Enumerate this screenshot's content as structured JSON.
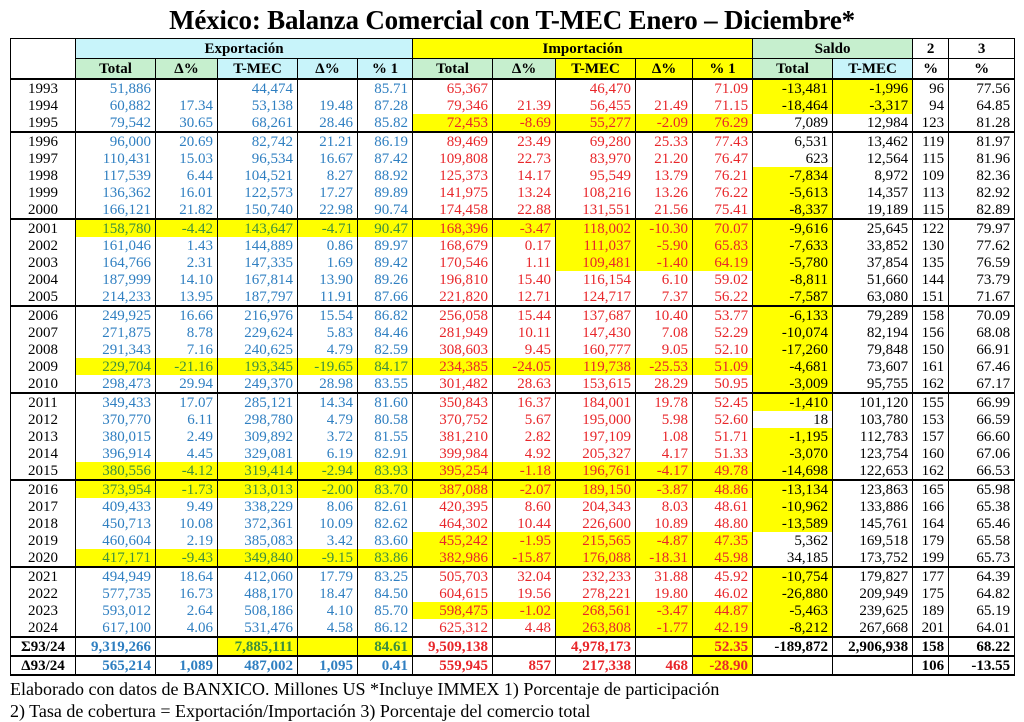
{
  "title": "México: Balanza Comercial con T-MEC Enero – Diciembre*",
  "groups": {
    "exportacion": "Exportación",
    "importacion": "Importación",
    "saldo": "Saldo",
    "col2": "2",
    "col3": "3"
  },
  "subheaders": [
    "Total",
    "Δ%",
    "T-MEC",
    "Δ%",
    "% 1",
    "Total",
    "Δ%",
    "T-MEC",
    "Δ%",
    "% 1",
    "Total",
    "T-MEC",
    "%",
    "%"
  ],
  "colors": {
    "export_text": "#2f7fc1",
    "import_text": "#e8262a",
    "highlight": "#ffff00",
    "header_cyan": "#c8f4fa",
    "header_green": "#c6efce"
  },
  "rows": [
    {
      "cells": [
        "1993",
        "51,886",
        "",
        "44,474",
        "",
        "85.71",
        "65,367",
        "",
        "46,470",
        "",
        "71.09",
        "-13,481",
        "-1,996",
        "96",
        "77.56"
      ],
      "highlight": [
        11,
        12
      ],
      "group_start": true
    },
    {
      "cells": [
        "1994",
        "60,882",
        "17.34",
        "53,138",
        "19.48",
        "87.28",
        "79,346",
        "21.39",
        "56,455",
        "21.49",
        "71.15",
        "-18,464",
        "-3,317",
        "94",
        "64.85"
      ],
      "highlight": [
        11,
        12
      ]
    },
    {
      "cells": [
        "1995",
        "79,542",
        "30.65",
        "68,261",
        "28.46",
        "85.82",
        "72,453",
        "-8.69",
        "55,277",
        "-2.09",
        "76.29",
        "7,089",
        "12,984",
        "123",
        "81.28"
      ],
      "highlight": [
        6,
        7,
        8,
        9,
        10
      ]
    },
    {
      "cells": [
        "1996",
        "96,000",
        "20.69",
        "82,742",
        "21.21",
        "86.19",
        "89,469",
        "23.49",
        "69,280",
        "25.33",
        "77.43",
        "6,531",
        "13,462",
        "119",
        "81.97"
      ],
      "highlight": [],
      "group_start": true
    },
    {
      "cells": [
        "1997",
        "110,431",
        "15.03",
        "96,534",
        "16.67",
        "87.42",
        "109,808",
        "22.73",
        "83,970",
        "21.20",
        "76.47",
        "623",
        "12,564",
        "115",
        "81.96"
      ],
      "highlight": []
    },
    {
      "cells": [
        "1998",
        "117,539",
        "6.44",
        "104,521",
        "8.27",
        "88.92",
        "125,373",
        "14.17",
        "95,549",
        "13.79",
        "76.21",
        "-7,834",
        "8,972",
        "109",
        "82.36"
      ],
      "highlight": [
        11
      ]
    },
    {
      "cells": [
        "1999",
        "136,362",
        "16.01",
        "122,573",
        "17.27",
        "89.89",
        "141,975",
        "13.24",
        "108,216",
        "13.26",
        "76.22",
        "-5,613",
        "14,357",
        "113",
        "82.92"
      ],
      "highlight": [
        11
      ]
    },
    {
      "cells": [
        "2000",
        "166,121",
        "21.82",
        "150,740",
        "22.98",
        "90.74",
        "174,458",
        "22.88",
        "131,551",
        "21.56",
        "75.41",
        "-8,337",
        "19,189",
        "115",
        "82.89"
      ],
      "highlight": [
        11
      ]
    },
    {
      "cells": [
        "2001",
        "158,780",
        "-4.42",
        "143,647",
        "-4.71",
        "90.47",
        "168,396",
        "-3.47",
        "118,002",
        "-10.30",
        "70.07",
        "-9,616",
        "25,645",
        "122",
        "79.97"
      ],
      "highlight": [
        1,
        2,
        3,
        4,
        5,
        6,
        7,
        8,
        9,
        10,
        11
      ],
      "group_start": true
    },
    {
      "cells": [
        "2002",
        "161,046",
        "1.43",
        "144,889",
        "0.86",
        "89.97",
        "168,679",
        "0.17",
        "111,037",
        "-5.90",
        "65.83",
        "-7,633",
        "33,852",
        "130",
        "77.62"
      ],
      "highlight": [
        8,
        9,
        10,
        11
      ]
    },
    {
      "cells": [
        "2003",
        "164,766",
        "2.31",
        "147,335",
        "1.69",
        "89.42",
        "170,546",
        "1.11",
        "109,481",
        "-1.40",
        "64.19",
        "-5,780",
        "37,854",
        "135",
        "76.59"
      ],
      "highlight": [
        8,
        9,
        10,
        11
      ]
    },
    {
      "cells": [
        "2004",
        "187,999",
        "14.10",
        "167,814",
        "13.90",
        "89.26",
        "196,810",
        "15.40",
        "116,154",
        "6.10",
        "59.02",
        "-8,811",
        "51,660",
        "144",
        "73.79"
      ],
      "highlight": [
        11
      ]
    },
    {
      "cells": [
        "2005",
        "214,233",
        "13.95",
        "187,797",
        "11.91",
        "87.66",
        "221,820",
        "12.71",
        "124,717",
        "7.37",
        "56.22",
        "-7,587",
        "63,080",
        "151",
        "71.67"
      ],
      "highlight": [
        11
      ]
    },
    {
      "cells": [
        "2006",
        "249,925",
        "16.66",
        "216,976",
        "15.54",
        "86.82",
        "256,058",
        "15.44",
        "137,687",
        "10.40",
        "53.77",
        "-6,133",
        "79,289",
        "158",
        "70.09"
      ],
      "highlight": [
        11
      ],
      "group_start": true
    },
    {
      "cells": [
        "2007",
        "271,875",
        "8.78",
        "229,624",
        "5.83",
        "84.46",
        "281,949",
        "10.11",
        "147,430",
        "7.08",
        "52.29",
        "-10,074",
        "82,194",
        "156",
        "68.08"
      ],
      "highlight": [
        11
      ]
    },
    {
      "cells": [
        "2008",
        "291,343",
        "7.16",
        "240,625",
        "4.79",
        "82.59",
        "308,603",
        "9.45",
        "160,777",
        "9.05",
        "52.10",
        "-17,260",
        "79,848",
        "150",
        "66.91"
      ],
      "highlight": [
        11
      ]
    },
    {
      "cells": [
        "2009",
        "229,704",
        "-21.16",
        "193,345",
        "-19.65",
        "84.17",
        "234,385",
        "-24.05",
        "119,738",
        "-25.53",
        "51.09",
        "-4,681",
        "73,607",
        "161",
        "67.46"
      ],
      "highlight": [
        1,
        2,
        3,
        4,
        5,
        6,
        7,
        8,
        9,
        10,
        11
      ]
    },
    {
      "cells": [
        "2010",
        "298,473",
        "29.94",
        "249,370",
        "28.98",
        "83.55",
        "301,482",
        "28.63",
        "153,615",
        "28.29",
        "50.95",
        "-3,009",
        "95,755",
        "162",
        "67.17"
      ],
      "highlight": [
        11
      ]
    },
    {
      "cells": [
        "2011",
        "349,433",
        "17.07",
        "285,121",
        "14.34",
        "81.60",
        "350,843",
        "16.37",
        "184,001",
        "19.78",
        "52.45",
        "-1,410",
        "101,120",
        "155",
        "66.99"
      ],
      "highlight": [
        11
      ],
      "group_start": true
    },
    {
      "cells": [
        "2012",
        "370,770",
        "6.11",
        "298,780",
        "4.79",
        "80.58",
        "370,752",
        "5.67",
        "195,000",
        "5.98",
        "52.60",
        "18",
        "103,780",
        "153",
        "66.59"
      ],
      "highlight": []
    },
    {
      "cells": [
        "2013",
        "380,015",
        "2.49",
        "309,892",
        "3.72",
        "81.55",
        "381,210",
        "2.82",
        "197,109",
        "1.08",
        "51.71",
        "-1,195",
        "112,783",
        "157",
        "66.60"
      ],
      "highlight": [
        11
      ]
    },
    {
      "cells": [
        "2014",
        "396,914",
        "4.45",
        "329,081",
        "6.19",
        "82.91",
        "399,984",
        "4.92",
        "205,327",
        "4.17",
        "51.33",
        "-3,070",
        "123,754",
        "160",
        "67.06"
      ],
      "highlight": [
        11
      ]
    },
    {
      "cells": [
        "2015",
        "380,556",
        "-4.12",
        "319,414",
        "-2.94",
        "83.93",
        "395,254",
        "-1.18",
        "196,761",
        "-4.17",
        "49.78",
        "-14,698",
        "122,653",
        "162",
        "66.53"
      ],
      "highlight": [
        1,
        2,
        3,
        4,
        5,
        6,
        7,
        8,
        9,
        10,
        11
      ]
    },
    {
      "cells": [
        "2016",
        "373,954",
        "-1.73",
        "313,013",
        "-2.00",
        "83.70",
        "387,088",
        "-2.07",
        "189,150",
        "-3.87",
        "48.86",
        "-13,134",
        "123,863",
        "165",
        "65.98"
      ],
      "highlight": [
        1,
        2,
        3,
        4,
        5,
        6,
        7,
        8,
        9,
        10,
        11
      ],
      "group_start": true
    },
    {
      "cells": [
        "2017",
        "409,433",
        "9.49",
        "338,229",
        "8.06",
        "82.61",
        "420,395",
        "8.60",
        "204,343",
        "8.03",
        "48.61",
        "-10,962",
        "133,886",
        "166",
        "65.38"
      ],
      "highlight": [
        11
      ]
    },
    {
      "cells": [
        "2018",
        "450,713",
        "10.08",
        "372,361",
        "10.09",
        "82.62",
        "464,302",
        "10.44",
        "226,600",
        "10.89",
        "48.80",
        "-13,589",
        "145,761",
        "164",
        "65.46"
      ],
      "highlight": [
        11
      ]
    },
    {
      "cells": [
        "2019",
        "460,604",
        "2.19",
        "385,083",
        "3.42",
        "83.60",
        "455,242",
        "-1.95",
        "215,565",
        "-4.87",
        "47.35",
        "5,362",
        "169,518",
        "179",
        "65.58"
      ],
      "highlight": [
        6,
        7,
        8,
        9,
        10
      ]
    },
    {
      "cells": [
        "2020",
        "417,171",
        "-9.43",
        "349,840",
        "-9.15",
        "83.86",
        "382,986",
        "-15.87",
        "176,088",
        "-18.31",
        "45.98",
        "34,185",
        "173,752",
        "199",
        "65.73"
      ],
      "highlight": [
        1,
        2,
        3,
        4,
        5,
        6,
        7,
        8,
        9,
        10
      ]
    },
    {
      "cells": [
        "2021",
        "494,949",
        "18.64",
        "412,060",
        "17.79",
        "83.25",
        "505,703",
        "32.04",
        "232,233",
        "31.88",
        "45.92",
        "-10,754",
        "179,827",
        "177",
        "64.39"
      ],
      "highlight": [
        11
      ],
      "group_start": true
    },
    {
      "cells": [
        "2022",
        "577,735",
        "16.73",
        "488,170",
        "18.47",
        "84.50",
        "604,615",
        "19.56",
        "278,221",
        "19.80",
        "46.02",
        "-26,880",
        "209,949",
        "175",
        "64.82"
      ],
      "highlight": [
        11
      ]
    },
    {
      "cells": [
        "2023",
        "593,012",
        "2.64",
        "508,186",
        "4.10",
        "85.70",
        "598,475",
        "-1.02",
        "268,561",
        "-3.47",
        "44.87",
        "-5,463",
        "239,625",
        "189",
        "65.19"
      ],
      "highlight": [
        6,
        7,
        8,
        9,
        10,
        11
      ]
    },
    {
      "cells": [
        "2024",
        "617,100",
        "4.06",
        "531,476",
        "4.58",
        "86.12",
        "625,312",
        "4.48",
        "263,808",
        "-1.77",
        "42.19",
        "-8,212",
        "267,668",
        "201",
        "64.01"
      ],
      "highlight": [
        8,
        9,
        10,
        11
      ]
    }
  ],
  "summary": [
    {
      "cells": [
        "Σ93/24",
        "9,319,266",
        "",
        "7,885,111",
        "",
        "84.61",
        "9,509,138",
        "",
        "4,978,173",
        "",
        "52.35",
        "-189,872",
        "2,906,938",
        "158",
        "68.22"
      ],
      "highlight": [
        3,
        4,
        5,
        10
      ]
    },
    {
      "cells": [
        "Δ93/24",
        "565,214",
        "1,089",
        "487,002",
        "1,095",
        "0.41",
        "559,945",
        "857",
        "217,338",
        "468",
        "-28.90",
        "",
        "",
        "106",
        "-13.55"
      ],
      "highlight": [
        10
      ]
    }
  ],
  "footer": {
    "line1": "Elaborado con datos de BANXICO. Millones US *Incluye IMMEX 1) Porcentaje de participación",
    "line2": "2) Tasa de cobertura = Exportación/Importación 3) Porcentaje del comercio total"
  }
}
